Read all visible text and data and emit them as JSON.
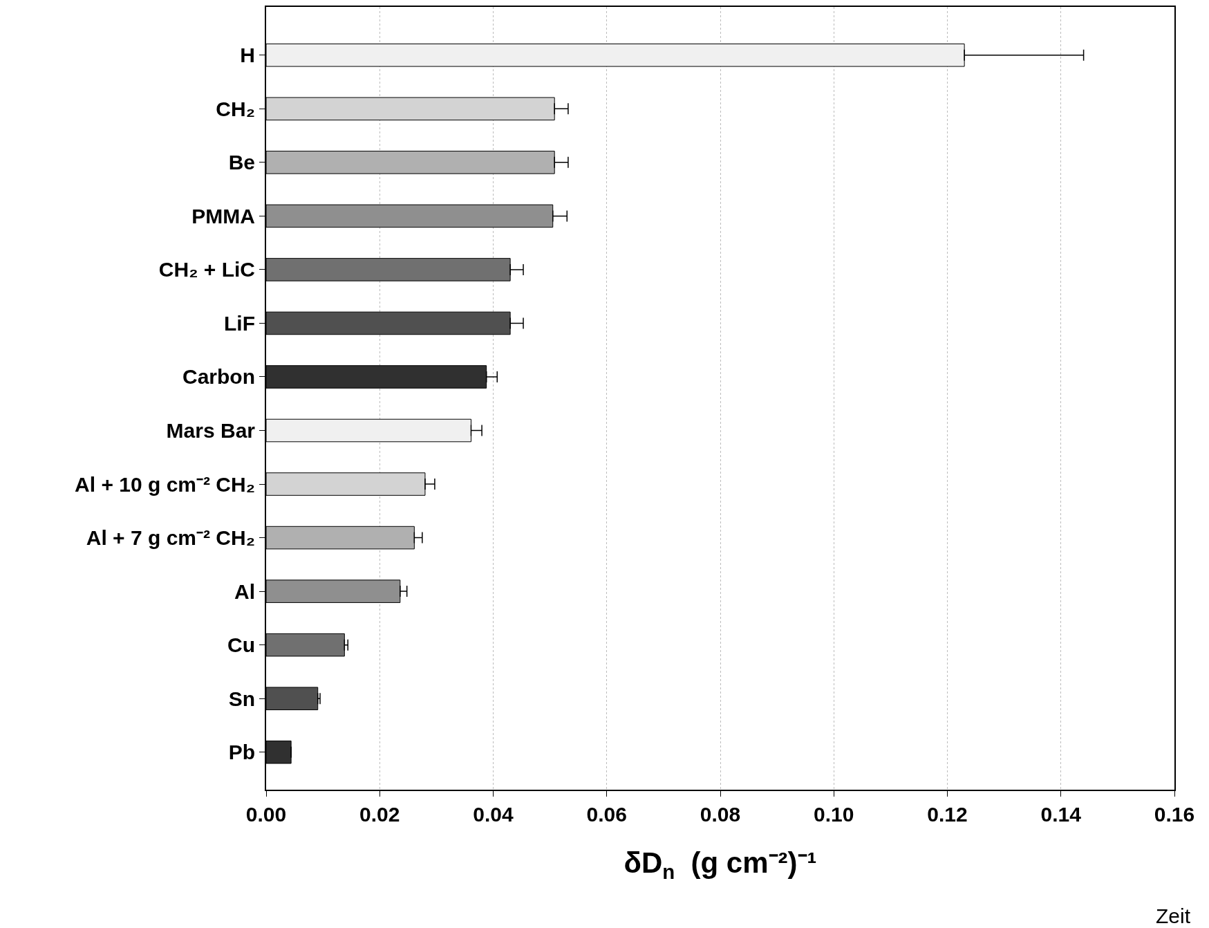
{
  "chart_data": {
    "type": "bar",
    "orientation": "horizontal",
    "categories": [
      "H",
      "CH₂",
      "Be",
      "PMMA",
      "CH₂ + LiC",
      "LiF",
      "Carbon",
      "Mars Bar",
      "Al + 10 g cm⁻² CH₂",
      "Al + 7 g cm⁻² CH₂",
      "Al",
      "Cu",
      "Sn",
      "Pb"
    ],
    "values": [
      0.123,
      0.0508,
      0.0508,
      0.0505,
      0.043,
      0.043,
      0.0388,
      0.0361,
      0.028,
      0.0261,
      0.0236,
      0.0138,
      0.0091,
      0.0044
    ],
    "errors": [
      0.021,
      0.0024,
      0.0024,
      0.0025,
      0.0023,
      0.0023,
      0.0019,
      0.0019,
      0.0017,
      0.0014,
      0.0012,
      0.0006,
      0.0004,
      null
    ],
    "colors": [
      "#f0f0f0",
      "#d3d3d3",
      "#b0b0b0",
      "#8f8f8f",
      "#707070",
      "#505050",
      "#303030",
      "#f0f0f0",
      "#d3d3d3",
      "#b0b0b0",
      "#8f8f8f",
      "#707070",
      "#505050",
      "#303030"
    ],
    "xlabel": "δD$_{n}$  (g cm⁻²)⁻¹",
    "xlim": [
      0,
      0.16
    ],
    "xticks": [
      {
        "value": 0,
        "label": "0.00"
      },
      0.02,
      0.04,
      0.06,
      0.08,
      {
        "value": 0.1,
        "label": "0.10"
      },
      0.12,
      0.14,
      0.16
    ],
    "grid": "x",
    "annotations": [
      "Zeit"
    ]
  }
}
